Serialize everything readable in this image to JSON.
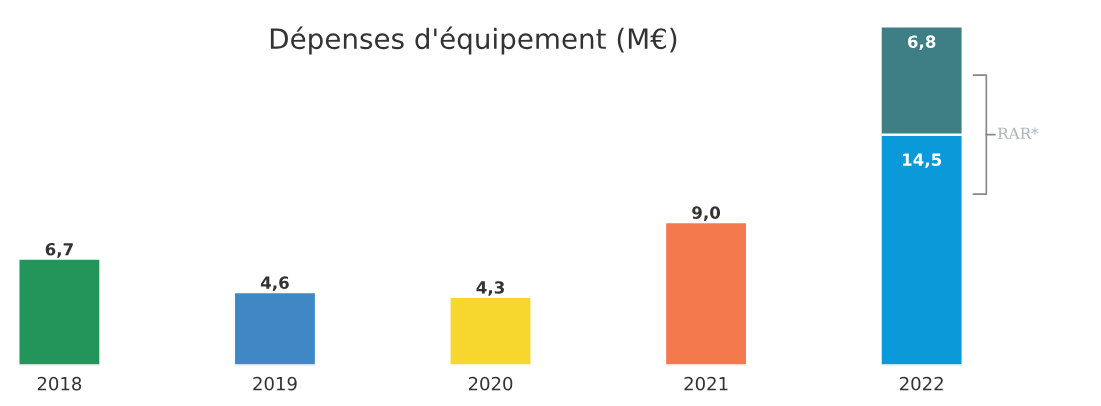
{
  "chart_data": {
    "type": "bar",
    "title": "Dépenses d'équipement (M€)",
    "categories": [
      "2018",
      "2019",
      "2020",
      "2021",
      "2022"
    ],
    "stacked": true,
    "series": [
      {
        "colors": [
          "#23955a",
          "#3f88c5",
          "#f7d62d",
          "#f47a4e",
          "#0a9ad9"
        ],
        "values": [
          6.7,
          4.6,
          4.3,
          9.0,
          14.5
        ],
        "value_labels": [
          "6,7",
          "4,6",
          "4,3",
          "9,0",
          "14,5"
        ]
      },
      {
        "color": "#3e7f86",
        "values": [
          null,
          null,
          null,
          null,
          6.8
        ],
        "value_labels": [
          null,
          null,
          null,
          null,
          "6,8"
        ]
      }
    ],
    "annotations": [
      "RAR*"
    ],
    "grid": false,
    "legend": false
  }
}
